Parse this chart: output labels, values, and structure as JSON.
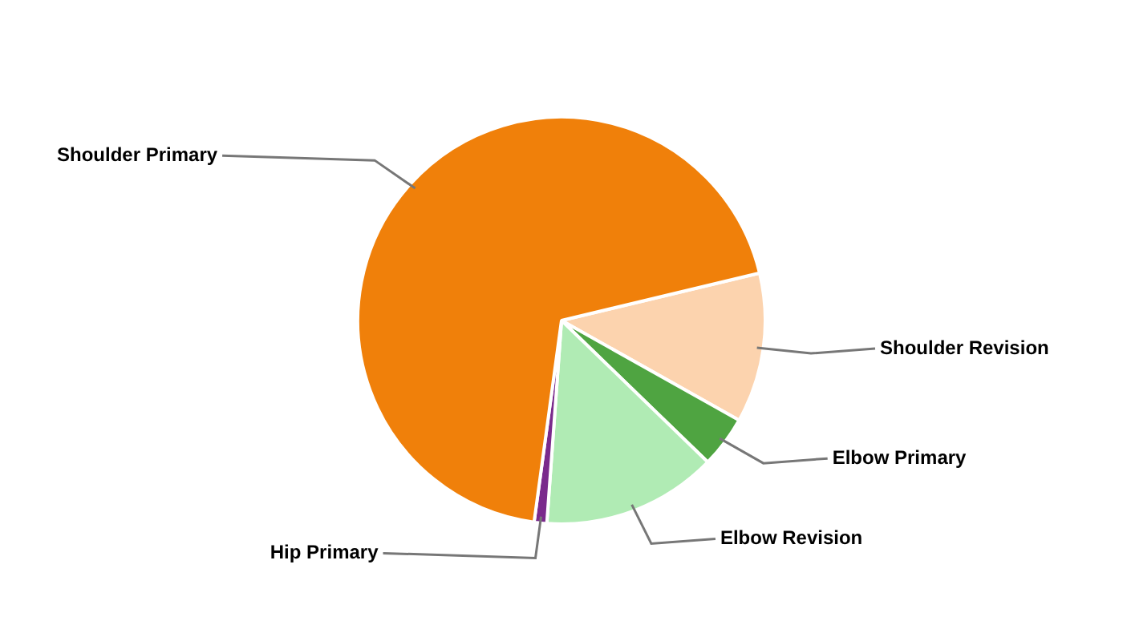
{
  "chart_data": {
    "type": "pie",
    "categories": [
      "Shoulder Revision",
      "Elbow Primary",
      "Elbow Revision",
      "Hip Primary",
      "Shoulder Primary"
    ],
    "values": [
      11.9,
      4.1,
      13.9,
      1.0,
      69.1
    ],
    "colors": [
      "#fcd3ae",
      "#4fa441",
      "#b0ebb4",
      "#7a2a8c",
      "#f0800a"
    ],
    "legend": false
  }
}
